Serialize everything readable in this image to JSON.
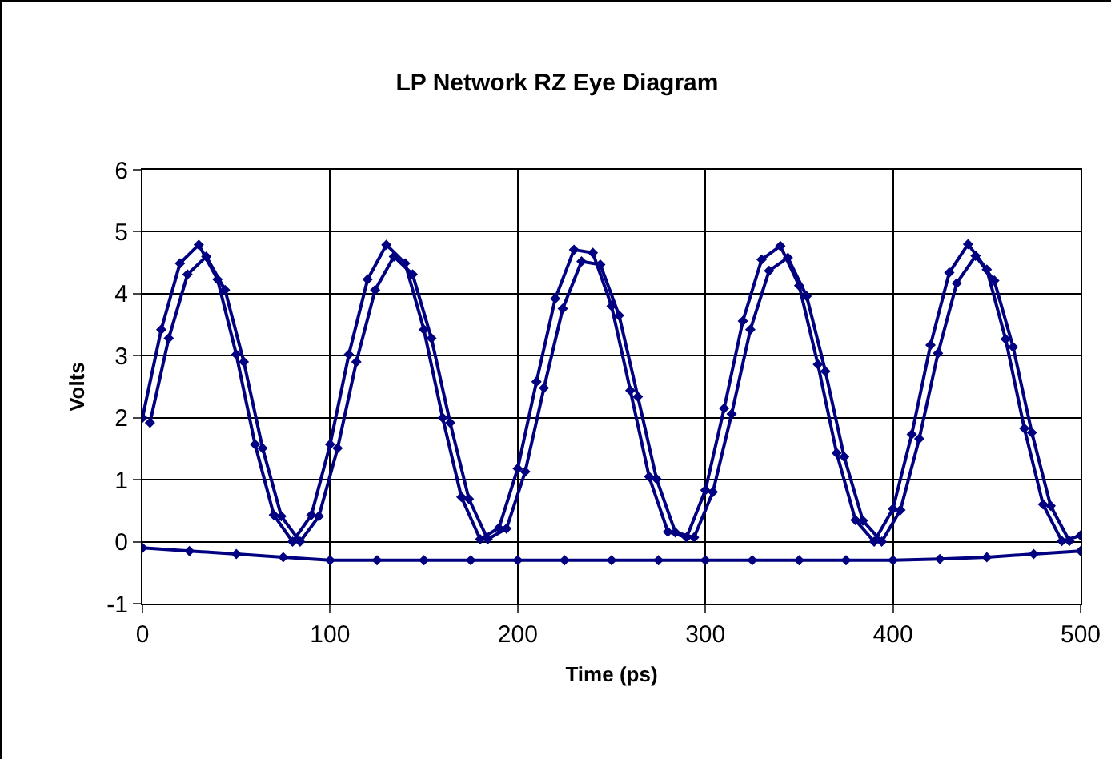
{
  "chart_data": {
    "type": "line",
    "title": "LP Network RZ Eye Diagram",
    "xlabel": "Time (ps)",
    "ylabel": "Volts",
    "xlim": [
      0,
      500
    ],
    "xticks": [
      0,
      100,
      200,
      300,
      400,
      500
    ],
    "ylim": [
      -1,
      6
    ],
    "yticks": [
      -1,
      0,
      1,
      2,
      3,
      4,
      5,
      6
    ],
    "grid": true,
    "marker": "diamond",
    "line_style": "solid",
    "series": [
      {
        "color": "#000080",
        "x": [
          0,
          10,
          20,
          30,
          40,
          50,
          60,
          70,
          80,
          90,
          100,
          110,
          120,
          130,
          140,
          150,
          160,
          170,
          180,
          190,
          200,
          210,
          220,
          230,
          240,
          250,
          260,
          270,
          280,
          290,
          300,
          310,
          320,
          330,
          340,
          350,
          360,
          370,
          380,
          390,
          400,
          410,
          420,
          430,
          440,
          450,
          460,
          470,
          480,
          490,
          500
        ],
        "values": [
          2.0,
          3.42,
          4.49,
          4.79,
          4.23,
          3.02,
          1.57,
          0.43,
          0.0,
          0.43,
          1.57,
          3.02,
          4.23,
          4.79,
          4.49,
          3.42,
          2.0,
          0.72,
          0.04,
          0.22,
          1.18,
          2.58,
          3.92,
          4.71,
          4.66,
          3.8,
          2.44,
          1.05,
          0.16,
          0.07,
          0.83,
          2.15,
          3.56,
          4.55,
          4.77,
          4.13,
          2.86,
          1.43,
          0.35,
          0.0,
          0.53,
          1.73,
          3.17,
          4.34,
          4.8,
          4.39,
          3.27,
          1.83,
          0.6,
          0.01,
          0.1
        ]
      },
      {
        "color": "#000080",
        "x": [
          4,
          14,
          24,
          34,
          44,
          54,
          64,
          74,
          84,
          94,
          104,
          114,
          124,
          134,
          144,
          154,
          164,
          174,
          184,
          194,
          204,
          214,
          224,
          234,
          244,
          254,
          264,
          274,
          284,
          294,
          304,
          314,
          324,
          334,
          344,
          354,
          364,
          374,
          384,
          394,
          404,
          414,
          424,
          434,
          444,
          454,
          464,
          474,
          484,
          494
        ],
        "values": [
          1.92,
          3.28,
          4.31,
          4.6,
          4.06,
          2.9,
          1.51,
          0.41,
          0.0,
          0.41,
          1.51,
          2.9,
          4.06,
          4.6,
          4.31,
          3.28,
          1.92,
          0.69,
          0.04,
          0.21,
          1.13,
          2.48,
          3.76,
          4.52,
          4.47,
          3.65,
          2.34,
          1.01,
          0.15,
          0.07,
          0.8,
          2.06,
          3.42,
          4.37,
          4.58,
          3.96,
          2.75,
          1.37,
          0.34,
          0.0,
          0.51,
          1.66,
          3.04,
          4.17,
          4.61,
          4.21,
          3.14,
          1.76,
          0.58,
          0.01
        ]
      },
      {
        "color": "#000080",
        "x": [
          0,
          25,
          50,
          75,
          100,
          125,
          150,
          175,
          200,
          225,
          250,
          275,
          300,
          325,
          350,
          375,
          400,
          425,
          450,
          475,
          500
        ],
        "values": [
          -0.1,
          -0.15,
          -0.2,
          -0.25,
          -0.3,
          -0.3,
          -0.3,
          -0.3,
          -0.3,
          -0.3,
          -0.3,
          -0.3,
          -0.3,
          -0.3,
          -0.3,
          -0.3,
          -0.3,
          -0.28,
          -0.25,
          -0.2,
          -0.15
        ]
      }
    ]
  }
}
